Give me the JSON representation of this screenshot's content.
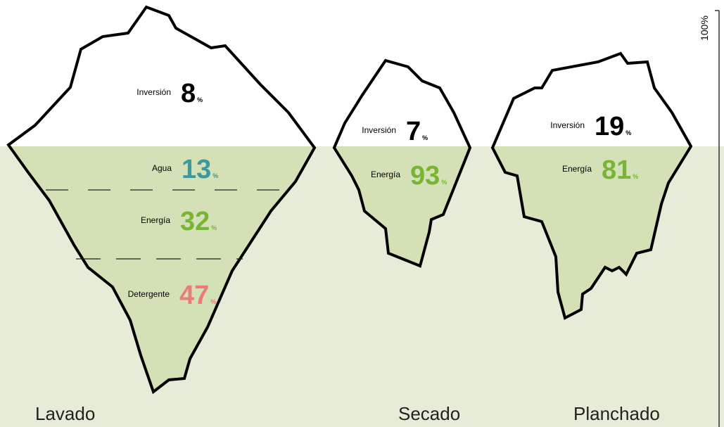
{
  "scale_label": "100%",
  "icebergs": [
    {
      "name": "Lavado",
      "items": [
        {
          "label": "Inversión",
          "value": "8",
          "unit": "%",
          "color": "#000000"
        },
        {
          "label": "Agua",
          "value": "13",
          "unit": "%",
          "color": "#3a9aa0"
        },
        {
          "label": "Energía",
          "value": "32",
          "unit": "%",
          "color": "#78b534"
        },
        {
          "label": "Detergente",
          "value": "47",
          "unit": "%",
          "color": "#e97d7d"
        }
      ]
    },
    {
      "name": "Secado",
      "items": [
        {
          "label": "Inversión",
          "value": "7",
          "unit": "%",
          "color": "#000000"
        },
        {
          "label": "Energía",
          "value": "93",
          "unit": "%",
          "color": "#78b534"
        }
      ]
    },
    {
      "name": "Planchado",
      "items": [
        {
          "label": "Inversión",
          "value": "19",
          "unit": "%",
          "color": "#000000"
        },
        {
          "label": "Energía",
          "value": "81",
          "unit": "%",
          "color": "#78b534"
        }
      ]
    }
  ]
}
